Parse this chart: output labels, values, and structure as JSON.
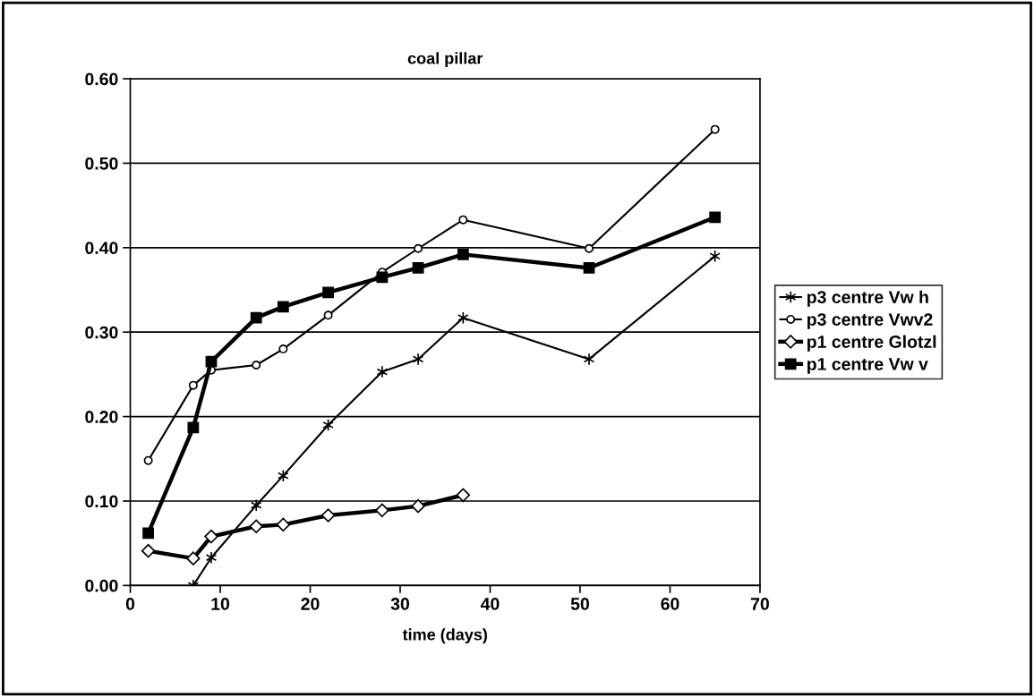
{
  "chart_data": {
    "type": "line",
    "title": "coal pillar",
    "xlabel": "time (days)",
    "xlim": [
      0,
      70
    ],
    "xticks": [
      0,
      10,
      20,
      30,
      40,
      50,
      60,
      70
    ],
    "ylim": [
      0,
      0.6
    ],
    "yticks": [
      {
        "value": 0,
        "label": "0.00"
      },
      {
        "value": 0.1,
        "label": "0.10"
      },
      {
        "value": 0.2,
        "label": "0.20"
      },
      {
        "value": 0.3,
        "label": "0.30"
      },
      {
        "value": 0.4,
        "label": "0.40"
      },
      {
        "value": 0.5,
        "label": "0.50"
      },
      {
        "value": 0.6,
        "label": "0.60"
      }
    ],
    "grid": "y",
    "legend": "right",
    "series": [
      {
        "name": "p3 centre Vw h",
        "color": "#000000",
        "marker": "cross",
        "x": [
          7,
          9,
          14,
          17,
          22,
          28,
          32,
          37,
          51,
          65
        ],
        "values": [
          0.0,
          0.033,
          0.095,
          0.13,
          0.19,
          0.253,
          0.268,
          0.317,
          0.268,
          0.39
        ]
      },
      {
        "name": "p3 centre Vwv2",
        "color": "#000000",
        "marker": "circle",
        "x": [
          2,
          7,
          9,
          14,
          17,
          22,
          28,
          32,
          37,
          51,
          65
        ],
        "values": [
          0.148,
          0.237,
          0.255,
          0.261,
          0.28,
          0.32,
          0.371,
          0.399,
          0.433,
          0.399,
          0.54
        ]
      },
      {
        "name": "p1 centre Glotzl",
        "color": "#000000",
        "marker": "diamond",
        "x": [
          2,
          7,
          9,
          14,
          17,
          22,
          28,
          32,
          37
        ],
        "values": [
          0.041,
          0.032,
          0.058,
          0.07,
          0.072,
          0.083,
          0.089,
          0.094,
          0.107
        ]
      },
      {
        "name": "p1 centre Vw v",
        "color": "#000000",
        "marker": "square",
        "x": [
          2,
          7,
          9,
          14,
          17,
          22,
          28,
          32,
          37,
          51,
          65
        ],
        "values": [
          0.062,
          0.187,
          0.265,
          0.317,
          0.33,
          0.347,
          0.365,
          0.376,
          0.392,
          0.376,
          0.436
        ]
      }
    ]
  }
}
